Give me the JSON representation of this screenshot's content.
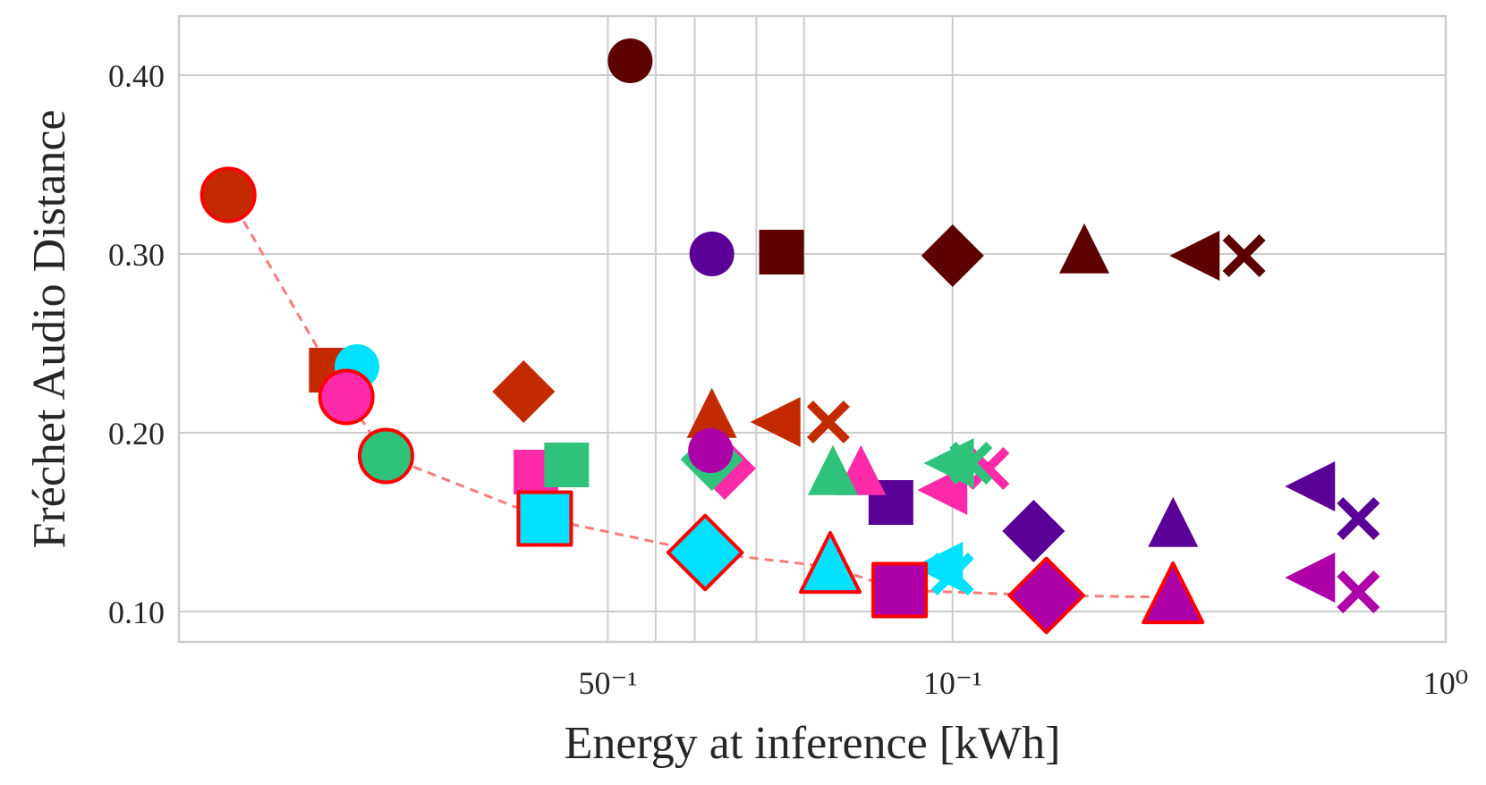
{
  "chart_data": {
    "type": "scatter",
    "title": "",
    "xlabel": "Energy at inference [kWh]",
    "ylabel": "Fréchet Audio Distance",
    "xscale": "log",
    "xlim": [
      0.0027,
      1.0
    ],
    "ylim": [
      0.083,
      0.433
    ],
    "x_ticks": [
      {
        "value": 0.02,
        "label": "50⁻¹"
      },
      {
        "value": 0.1,
        "label": "10⁻¹"
      },
      {
        "value": 1.0,
        "label": "10⁰"
      }
    ],
    "x_minor_grid": [
      0.025,
      0.03,
      0.04,
      0.05
    ],
    "y_ticks": [
      {
        "value": 0.1,
        "label": "0.10"
      },
      {
        "value": 0.2,
        "label": "0.20"
      },
      {
        "value": 0.3,
        "label": "0.30"
      },
      {
        "value": 0.4,
        "label": "0.40"
      }
    ],
    "grid": true,
    "legend": "none",
    "colors": {
      "maroon": "#5c0000",
      "indigo": "#5b0096",
      "rust": "#c42a00",
      "cyan": "#00e0ff",
      "pink": "#ff2aa8",
      "green": "#2ec27a",
      "magenta": "#ad00a8",
      "pareto_line": "#f87c7c",
      "pareto_edge": "#ff0000"
    },
    "marker_order": [
      "circle",
      "square",
      "diamond",
      "triangle-up",
      "triangle-left",
      "x"
    ],
    "series": [
      {
        "name": "maroon",
        "color": "#5c0000",
        "points": [
          {
            "x": 0.0222,
            "y": 0.408,
            "marker": "circle"
          },
          {
            "x": 0.045,
            "y": 0.301,
            "marker": "square"
          },
          {
            "x": 0.1,
            "y": 0.299,
            "marker": "diamond"
          },
          {
            "x": 0.185,
            "y": 0.301,
            "marker": "triangle-up"
          },
          {
            "x": 0.315,
            "y": 0.299,
            "marker": "triangle-left"
          },
          {
            "x": 0.39,
            "y": 0.299,
            "marker": "x"
          }
        ]
      },
      {
        "name": "indigo",
        "color": "#5b0096",
        "points": [
          {
            "x": 0.0325,
            "y": 0.3,
            "marker": "circle"
          },
          {
            "x": 0.075,
            "y": 0.161,
            "marker": "square"
          },
          {
            "x": 0.146,
            "y": 0.145,
            "marker": "diamond"
          },
          {
            "x": 0.28,
            "y": 0.148,
            "marker": "triangle-up"
          },
          {
            "x": 0.54,
            "y": 0.17,
            "marker": "triangle-left"
          },
          {
            "x": 0.665,
            "y": 0.152,
            "marker": "x"
          }
        ]
      },
      {
        "name": "rust",
        "color": "#c42a00",
        "points": [
          {
            "x": 0.0034,
            "y": 0.333,
            "marker": "circle",
            "pareto": true
          },
          {
            "x": 0.0055,
            "y": 0.235,
            "marker": "square"
          },
          {
            "x": 0.0135,
            "y": 0.223,
            "marker": "diamond"
          },
          {
            "x": 0.0325,
            "y": 0.209,
            "marker": "triangle-up"
          },
          {
            "x": 0.0445,
            "y": 0.206,
            "marker": "triangle-left"
          },
          {
            "x": 0.056,
            "y": 0.206,
            "marker": "x"
          }
        ]
      },
      {
        "name": "cyan",
        "color": "#00e0ff",
        "points": [
          {
            "x": 0.0062,
            "y": 0.237,
            "marker": "circle"
          },
          {
            "x": 0.0149,
            "y": 0.152,
            "marker": "square",
            "pareto": true
          },
          {
            "x": 0.0315,
            "y": 0.133,
            "marker": "diamond",
            "pareto": true
          },
          {
            "x": 0.0565,
            "y": 0.125,
            "marker": "triangle-up",
            "pareto": true
          },
          {
            "x": 0.095,
            "y": 0.125,
            "marker": "triangle-left"
          },
          {
            "x": 0.1,
            "y": 0.121,
            "marker": "x"
          }
        ]
      },
      {
        "name": "pink",
        "color": "#ff2aa8",
        "points": [
          {
            "x": 0.0059,
            "y": 0.22,
            "marker": "circle",
            "pareto": true
          },
          {
            "x": 0.0143,
            "y": 0.178,
            "marker": "square"
          },
          {
            "x": 0.0345,
            "y": 0.18,
            "marker": "diamond"
          },
          {
            "x": 0.0652,
            "y": 0.177,
            "marker": "triangle-up"
          },
          {
            "x": 0.097,
            "y": 0.168,
            "marker": "triangle-left"
          },
          {
            "x": 0.118,
            "y": 0.18,
            "marker": "x"
          }
        ]
      },
      {
        "name": "green",
        "color": "#2ec27a",
        "points": [
          {
            "x": 0.0071,
            "y": 0.187,
            "marker": "circle",
            "pareto": true
          },
          {
            "x": 0.0165,
            "y": 0.182,
            "marker": "square"
          },
          {
            "x": 0.0325,
            "y": 0.185,
            "marker": "diamond"
          },
          {
            "x": 0.0572,
            "y": 0.177,
            "marker": "triangle-up"
          },
          {
            "x": 0.1,
            "y": 0.183,
            "marker": "triangle-left"
          },
          {
            "x": 0.109,
            "y": 0.183,
            "marker": "x"
          }
        ]
      },
      {
        "name": "magenta",
        "color": "#ad00a8",
        "points": [
          {
            "x": 0.0323,
            "y": 0.19,
            "marker": "circle"
          },
          {
            "x": 0.0781,
            "y": 0.112,
            "marker": "square",
            "pareto": true
          },
          {
            "x": 0.155,
            "y": 0.109,
            "marker": "diamond",
            "pareto": true
          },
          {
            "x": 0.28,
            "y": 0.108,
            "marker": "triangle-up",
            "pareto": true
          },
          {
            "x": 0.54,
            "y": 0.119,
            "marker": "triangle-left"
          },
          {
            "x": 0.665,
            "y": 0.111,
            "marker": "x"
          }
        ]
      }
    ],
    "pareto_front": [
      {
        "x": 0.0034,
        "y": 0.333
      },
      {
        "x": 0.0059,
        "y": 0.22
      },
      {
        "x": 0.0071,
        "y": 0.187
      },
      {
        "x": 0.0149,
        "y": 0.152
      },
      {
        "x": 0.0315,
        "y": 0.133
      },
      {
        "x": 0.0565,
        "y": 0.125
      },
      {
        "x": 0.0781,
        "y": 0.112
      },
      {
        "x": 0.155,
        "y": 0.109
      },
      {
        "x": 0.28,
        "y": 0.108
      }
    ]
  }
}
